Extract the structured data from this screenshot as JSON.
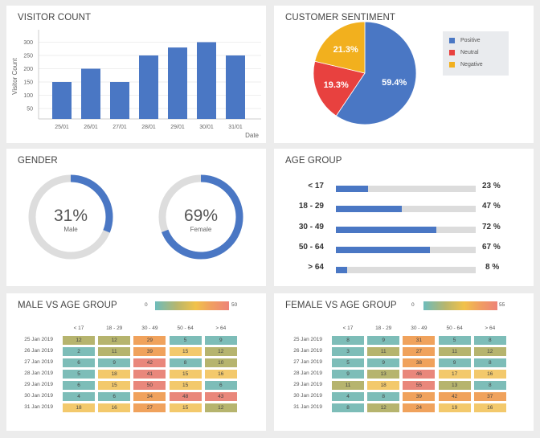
{
  "visitor_count": {
    "title": "VISITOR COUNT",
    "chart_data": {
      "type": "bar",
      "categories": [
        "25/01",
        "26/01",
        "27/01",
        "28/01",
        "29/01",
        "30/01",
        "31/01"
      ],
      "values": [
        150,
        200,
        150,
        250,
        280,
        300,
        250
      ],
      "xlabel": "Date",
      "ylabel": "Visitor Count",
      "yticks": [
        50,
        100,
        150,
        200,
        250,
        300
      ],
      "grid": true,
      "color": "#4a77c4"
    }
  },
  "sentiment": {
    "title": "CUSTOMER SENTIMENT",
    "chart_data": {
      "type": "pie",
      "slices": [
        {
          "name": "Positive",
          "value": 59.4,
          "label": "59.4%",
          "color": "#4a77c4"
        },
        {
          "name": "Neutral",
          "value": 19.3,
          "label": "19.3%",
          "color": "#e8413f"
        },
        {
          "name": "Negative",
          "value": 21.3,
          "label": "21.3%",
          "color": "#f2b01e"
        }
      ],
      "legend": "right"
    }
  },
  "gender": {
    "title": "GENDER",
    "items": [
      {
        "label": "Male",
        "value": 31,
        "text": "31%"
      },
      {
        "label": "Female",
        "value": 69,
        "text": "69%"
      }
    ],
    "color": "#4a77c4",
    "track_color": "#dddddd"
  },
  "age_group": {
    "title": "AGE GROUP",
    "rows": [
      {
        "label": "< 17",
        "value": 23,
        "text": "23 %"
      },
      {
        "label": "18 - 29",
        "value": 47,
        "text": "47 %"
      },
      {
        "label": "30 - 49",
        "value": 72,
        "text": "72 %"
      },
      {
        "label": "50 - 64",
        "value": 67,
        "text": "67 %"
      },
      {
        "label": "> 64",
        "value": 8,
        "text": "8 %"
      }
    ]
  },
  "male_vs_age": {
    "title": "MALE VS AGE GROUP",
    "chart_data": {
      "type": "heatmap",
      "columns": [
        "< 17",
        "18 - 29",
        "30 - 49",
        "50 - 64",
        "> 64"
      ],
      "rows": [
        "25 Jan 2019",
        "26 Jan 2019",
        "27 Jan 2019",
        "28 Jan 2019",
        "29 Jan 2019",
        "30 Jan 2019",
        "31 Jan 2019"
      ],
      "values": [
        [
          12,
          12,
          29,
          5,
          9
        ],
        [
          2,
          11,
          39,
          15,
          12
        ],
        [
          6,
          9,
          42,
          8,
          10
        ],
        [
          5,
          18,
          41,
          15,
          16
        ],
        [
          6,
          15,
          50,
          15,
          6
        ],
        [
          4,
          6,
          34,
          48,
          43
        ],
        [
          18,
          16,
          27,
          15,
          12
        ]
      ],
      "scale_min": "0",
      "scale_max": "50",
      "max": 50
    }
  },
  "female_vs_age": {
    "title": "FEMALE VS AGE GROUP",
    "chart_data": {
      "type": "heatmap",
      "columns": [
        "< 17",
        "18 - 29",
        "30 - 49",
        "50 - 64",
        "> 64"
      ],
      "rows": [
        "25 Jan 2019",
        "26 Jan 2019",
        "27 Jan 2019",
        "28 Jan 2019",
        "29 Jan 2019",
        "30 Jan 2019",
        "31 Jan 2019"
      ],
      "values": [
        [
          8,
          9,
          31,
          5,
          8
        ],
        [
          3,
          11,
          27,
          11,
          12
        ],
        [
          5,
          9,
          38,
          9,
          8
        ],
        [
          9,
          13,
          46,
          17,
          16
        ],
        [
          11,
          18,
          55,
          13,
          8
        ],
        [
          4,
          8,
          39,
          42,
          37
        ],
        [
          8,
          12,
          24,
          19,
          16
        ]
      ],
      "scale_min": "0",
      "scale_max": "55",
      "max": 55
    }
  }
}
